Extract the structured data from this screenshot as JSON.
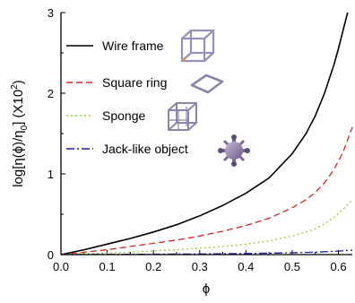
{
  "chart_data": {
    "type": "line",
    "xlabel": "ϕ",
    "ylabel_parts": [
      "log[η(ϕ)/η",
      "0",
      "] (X10",
      "2",
      ")"
    ],
    "xlim": [
      0.0,
      0.63
    ],
    "ylim": [
      0,
      3
    ],
    "x_ticks": [
      0.0,
      0.1,
      0.2,
      0.3,
      0.4,
      0.5,
      0.6
    ],
    "x_tick_labels": [
      "0.0",
      "0.1",
      "0.2",
      "0.3",
      "0.4",
      "0.5",
      "0.6"
    ],
    "y_ticks": [
      0,
      1,
      2,
      3
    ],
    "y_tick_labels": [
      "0",
      "1",
      "2",
      "3"
    ],
    "legend_position": "upper-left",
    "grid": false,
    "series": [
      {
        "name": "Wire frame",
        "color": "#000000",
        "dash": "solid",
        "icon": "wire-frame-cube-icon",
        "x": [
          0.0,
          0.05,
          0.1,
          0.15,
          0.2,
          0.25,
          0.3,
          0.35,
          0.4,
          0.45,
          0.5,
          0.53,
          0.55,
          0.57,
          0.59,
          0.6,
          0.61,
          0.62
        ],
        "values": [
          0.0,
          0.06,
          0.13,
          0.2,
          0.28,
          0.37,
          0.48,
          0.61,
          0.76,
          0.95,
          1.25,
          1.5,
          1.72,
          2.0,
          2.35,
          2.55,
          2.78,
          3.0
        ]
      },
      {
        "name": "Square ring",
        "color": "#d62728",
        "dash": "dashed",
        "icon": "square-ring-icon",
        "x": [
          0.0,
          0.05,
          0.1,
          0.15,
          0.2,
          0.25,
          0.3,
          0.35,
          0.4,
          0.45,
          0.5,
          0.53,
          0.55,
          0.57,
          0.59,
          0.61,
          0.63
        ],
        "values": [
          0.0,
          0.03,
          0.06,
          0.1,
          0.14,
          0.18,
          0.23,
          0.29,
          0.36,
          0.45,
          0.58,
          0.68,
          0.77,
          0.89,
          1.05,
          1.27,
          1.58
        ]
      },
      {
        "name": "Sponge",
        "color": "#9acd32",
        "dash": "dotted",
        "icon": "sponge-cube-icon",
        "x": [
          0.0,
          0.05,
          0.1,
          0.15,
          0.2,
          0.25,
          0.3,
          0.35,
          0.4,
          0.45,
          0.5,
          0.53,
          0.55,
          0.57,
          0.59,
          0.61,
          0.63
        ],
        "values": [
          0.0,
          0.01,
          0.02,
          0.03,
          0.045,
          0.06,
          0.08,
          0.1,
          0.13,
          0.17,
          0.23,
          0.28,
          0.32,
          0.38,
          0.46,
          0.56,
          0.68
        ]
      },
      {
        "name": "Jack-like object",
        "color": "#1f1fa8",
        "dash": "dashdot",
        "icon": "jack-object-icon",
        "x": [
          0.0,
          0.1,
          0.2,
          0.3,
          0.4,
          0.5,
          0.55,
          0.6,
          0.63
        ],
        "values": [
          0.0,
          0.002,
          0.005,
          0.008,
          0.013,
          0.022,
          0.03,
          0.043,
          0.055
        ]
      }
    ]
  }
}
